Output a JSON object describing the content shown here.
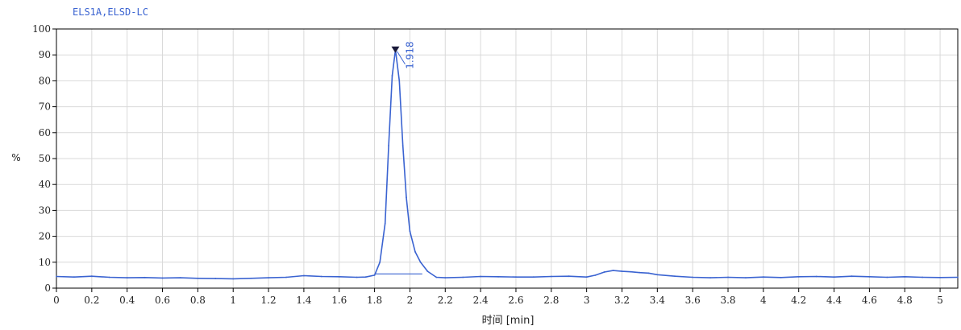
{
  "chart_data": {
    "type": "line",
    "title": "ELS1A,ELSD-LC",
    "xlabel": "时间 [min]",
    "ylabel": "%",
    "xlim": [
      0,
      5.1
    ],
    "ylim": [
      0,
      100
    ],
    "x_ticks": [
      "0",
      "0.2",
      "0.4",
      "0.6",
      "0.8",
      "1",
      "1.2",
      "1.4",
      "1.6",
      "1.8",
      "2",
      "2.2",
      "2.4",
      "2.6",
      "2.8",
      "3",
      "3.2",
      "3.4",
      "3.6",
      "3.8",
      "4",
      "4.2",
      "4.4",
      "4.6",
      "4.8",
      "5"
    ],
    "y_ticks": [
      "0",
      "10",
      "20",
      "30",
      "40",
      "50",
      "60",
      "70",
      "80",
      "90",
      "100"
    ],
    "grid": true,
    "colors": {
      "trace": "#3a63d1",
      "marker": "#1a1a3a",
      "title": "#3a63d1"
    },
    "series": [
      {
        "x": [
          0,
          0.1,
          0.2,
          0.3,
          0.4,
          0.5,
          0.6,
          0.7,
          0.8,
          0.9,
          1.0,
          1.1,
          1.2,
          1.3,
          1.4,
          1.5,
          1.6,
          1.7,
          1.75,
          1.8,
          1.83,
          1.86,
          1.88,
          1.9,
          1.918,
          1.94,
          1.96,
          1.98,
          2.0,
          2.03,
          2.06,
          2.1,
          2.15,
          2.2,
          2.3,
          2.4,
          2.5,
          2.6,
          2.7,
          2.8,
          2.9,
          3.0,
          3.05,
          3.1,
          3.15,
          3.2,
          3.25,
          3.3,
          3.35,
          3.4,
          3.5,
          3.6,
          3.7,
          3.8,
          3.9,
          4.0,
          4.1,
          4.2,
          4.3,
          4.4,
          4.5,
          4.6,
          4.7,
          4.8,
          4.9,
          5.0,
          5.1
        ],
        "values": [
          4.5,
          4.3,
          4.6,
          4.2,
          4.0,
          4.1,
          3.9,
          4.0,
          3.8,
          3.7,
          3.6,
          3.8,
          4.0,
          4.2,
          4.8,
          4.5,
          4.4,
          4.2,
          4.3,
          5,
          10,
          25,
          55,
          82,
          92,
          80,
          55,
          35,
          22,
          14,
          10,
          6.5,
          4.2,
          4.0,
          4.2,
          4.5,
          4.4,
          4.3,
          4.3,
          4.5,
          4.6,
          4.3,
          5.0,
          6.2,
          6.8,
          6.5,
          6.3,
          6.0,
          5.8,
          5.2,
          4.6,
          4.2,
          4.0,
          4.2,
          4.0,
          4.3,
          4.1,
          4.4,
          4.5,
          4.3,
          4.6,
          4.4,
          4.2,
          4.4,
          4.2,
          4.1,
          4.2
        ]
      }
    ],
    "peak": {
      "retention_time": 1.918,
      "label": "1.918",
      "height": 92
    },
    "baseline": {
      "x": [
        1.8,
        2.07
      ],
      "y": [
        5.5,
        5.5
      ]
    }
  }
}
